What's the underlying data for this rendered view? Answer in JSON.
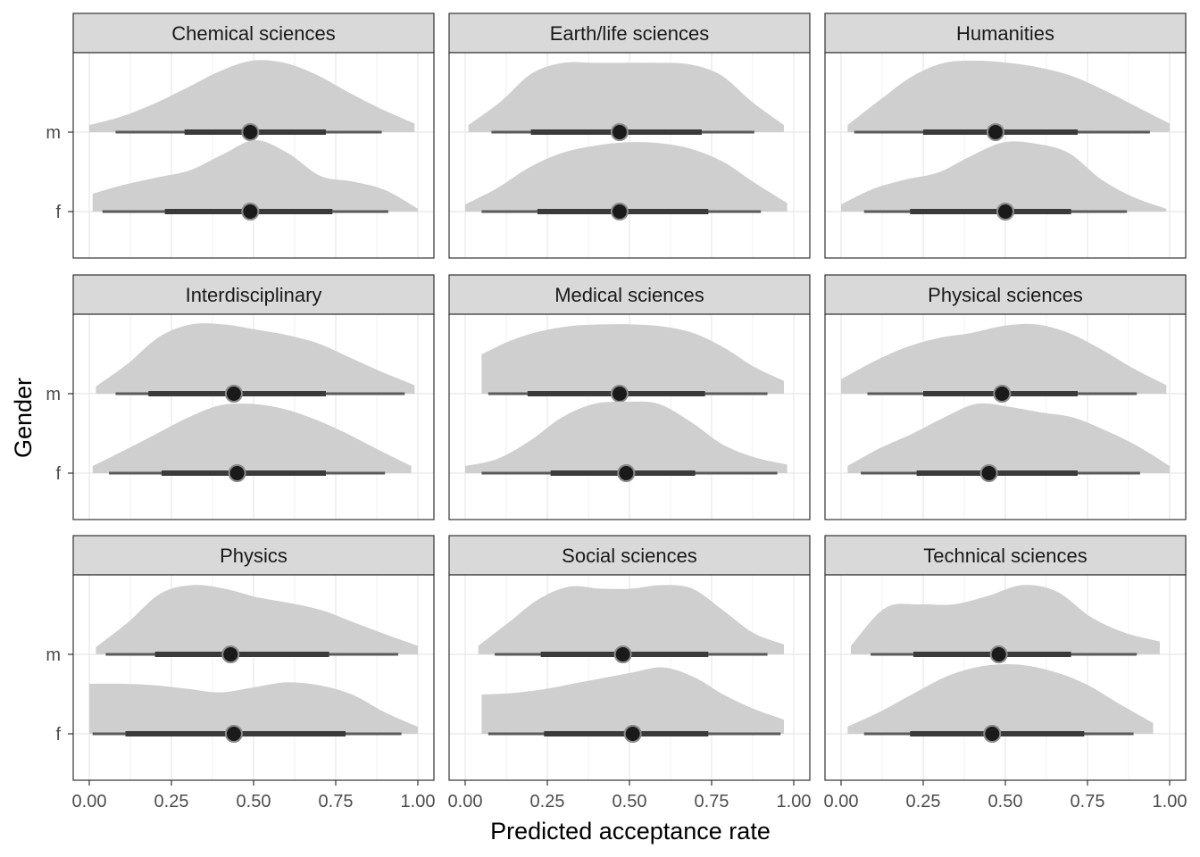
{
  "chart_data": {
    "type": "halfeye",
    "xlabel": "Predicted acceptance rate",
    "ylabel": "Gender",
    "xlim": [
      0,
      1
    ],
    "x_ticks": [
      "0.00",
      "0.25",
      "0.50",
      "0.75",
      "1.00"
    ],
    "y_categories": [
      "f",
      "m"
    ],
    "grid": true,
    "colors": {
      "density": "#cfcfcf",
      "interval": "#2b2b2b",
      "strip_bg": "#d9d9d9",
      "grid": "#ebebeb"
    },
    "panels": [
      {
        "title": "Chemical sciences",
        "series": [
          {
            "group": "m",
            "median": 0.49,
            "i66": [
              0.29,
              0.72
            ],
            "i95": [
              0.08,
              0.89
            ],
            "range": [
              0.0,
              0.99
            ],
            "density": [
              0.1,
              0.22,
              0.4,
              0.62,
              0.85,
              1.0,
              0.97,
              0.8,
              0.55,
              0.32,
              0.12
            ]
          },
          {
            "group": "f",
            "median": 0.49,
            "i66": [
              0.23,
              0.74
            ],
            "i95": [
              0.04,
              0.91
            ],
            "range": [
              0.01,
              1.0
            ],
            "density": [
              0.25,
              0.38,
              0.48,
              0.58,
              0.8,
              1.0,
              0.82,
              0.5,
              0.42,
              0.3,
              0.04
            ]
          }
        ]
      },
      {
        "title": "Earth/life sciences",
        "series": [
          {
            "group": "m",
            "median": 0.47,
            "i66": [
              0.2,
              0.72
            ],
            "i95": [
              0.08,
              0.88
            ],
            "range": [
              0.01,
              0.97
            ],
            "density": [
              0.1,
              0.42,
              0.82,
              0.97,
              0.97,
              0.97,
              0.97,
              0.95,
              0.8,
              0.42,
              0.1
            ]
          },
          {
            "group": "f",
            "median": 0.47,
            "i66": [
              0.22,
              0.74
            ],
            "i95": [
              0.05,
              0.9
            ],
            "range": [
              0.0,
              0.98
            ],
            "density": [
              0.1,
              0.33,
              0.62,
              0.82,
              0.92,
              0.97,
              0.96,
              0.88,
              0.7,
              0.4,
              0.12
            ]
          }
        ]
      },
      {
        "title": "Humanities",
        "series": [
          {
            "group": "m",
            "median": 0.47,
            "i66": [
              0.25,
              0.72
            ],
            "i95": [
              0.04,
              0.94
            ],
            "range": [
              0.02,
              1.0
            ],
            "density": [
              0.1,
              0.45,
              0.78,
              0.97,
              1.0,
              0.97,
              0.9,
              0.78,
              0.58,
              0.35,
              0.12
            ]
          },
          {
            "group": "f",
            "median": 0.5,
            "i66": [
              0.21,
              0.7
            ],
            "i95": [
              0.07,
              0.87
            ],
            "range": [
              0.0,
              0.99
            ],
            "density": [
              0.1,
              0.32,
              0.45,
              0.55,
              0.78,
              0.97,
              0.95,
              0.82,
              0.45,
              0.2,
              0.04
            ]
          }
        ]
      },
      {
        "title": "Interdisciplinary",
        "series": [
          {
            "group": "m",
            "median": 0.44,
            "i66": [
              0.18,
              0.72
            ],
            "i95": [
              0.08,
              0.96
            ],
            "range": [
              0.02,
              0.99
            ],
            "density": [
              0.1,
              0.42,
              0.8,
              0.97,
              0.97,
              0.9,
              0.82,
              0.7,
              0.5,
              0.3,
              0.12
            ]
          },
          {
            "group": "f",
            "median": 0.45,
            "i66": [
              0.22,
              0.72
            ],
            "i95": [
              0.06,
              0.9
            ],
            "range": [
              0.01,
              0.98
            ],
            "density": [
              0.1,
              0.32,
              0.55,
              0.78,
              0.95,
              0.97,
              0.9,
              0.75,
              0.55,
              0.32,
              0.1
            ]
          }
        ]
      },
      {
        "title": "Medical sciences",
        "series": [
          {
            "group": "m",
            "median": 0.47,
            "i66": [
              0.19,
              0.73
            ],
            "i95": [
              0.07,
              0.92
            ],
            "range": [
              0.05,
              0.97
            ],
            "density": [
              0.55,
              0.75,
              0.88,
              0.95,
              0.97,
              0.97,
              0.94,
              0.85,
              0.65,
              0.38,
              0.18
            ]
          },
          {
            "group": "f",
            "median": 0.49,
            "i66": [
              0.26,
              0.7
            ],
            "i95": [
              0.05,
              0.95
            ],
            "range": [
              0.0,
              0.98
            ],
            "density": [
              0.1,
              0.2,
              0.45,
              0.78,
              0.97,
              1.0,
              0.97,
              0.72,
              0.4,
              0.22,
              0.12
            ]
          }
        ]
      },
      {
        "title": "Physical sciences",
        "series": [
          {
            "group": "m",
            "median": 0.49,
            "i66": [
              0.25,
              0.72
            ],
            "i95": [
              0.08,
              0.9
            ],
            "range": [
              0.0,
              0.99
            ],
            "density": [
              0.2,
              0.45,
              0.65,
              0.78,
              0.85,
              0.95,
              0.97,
              0.85,
              0.62,
              0.35,
              0.12
            ]
          },
          {
            "group": "f",
            "median": 0.45,
            "i66": [
              0.23,
              0.72
            ],
            "i95": [
              0.06,
              0.91
            ],
            "range": [
              0.02,
              1.0
            ],
            "density": [
              0.1,
              0.35,
              0.55,
              0.78,
              0.97,
              0.93,
              0.85,
              0.78,
              0.6,
              0.38,
              0.1
            ]
          }
        ]
      },
      {
        "title": "Physics",
        "series": [
          {
            "group": "m",
            "median": 0.43,
            "i66": [
              0.2,
              0.73
            ],
            "i95": [
              0.05,
              0.94
            ],
            "range": [
              0.02,
              1.0
            ],
            "density": [
              0.1,
              0.45,
              0.85,
              0.97,
              0.92,
              0.8,
              0.72,
              0.62,
              0.45,
              0.28,
              0.12
            ]
          },
          {
            "group": "f",
            "median": 0.44,
            "i66": [
              0.11,
              0.78
            ],
            "i95": [
              0.01,
              0.95
            ],
            "range": [
              0.0,
              1.0
            ],
            "density": [
              0.7,
              0.7,
              0.68,
              0.63,
              0.58,
              0.65,
              0.72,
              0.68,
              0.55,
              0.3,
              0.1
            ]
          }
        ]
      },
      {
        "title": "Social sciences",
        "series": [
          {
            "group": "m",
            "median": 0.48,
            "i66": [
              0.23,
              0.74
            ],
            "i95": [
              0.09,
              0.92
            ],
            "range": [
              0.04,
              0.97
            ],
            "density": [
              0.12,
              0.45,
              0.78,
              0.95,
              0.92,
              0.92,
              0.97,
              0.92,
              0.62,
              0.3,
              0.14
            ]
          },
          {
            "group": "f",
            "median": 0.51,
            "i66": [
              0.24,
              0.74
            ],
            "i95": [
              0.07,
              0.96
            ],
            "range": [
              0.05,
              0.97
            ],
            "density": [
              0.55,
              0.57,
              0.62,
              0.7,
              0.78,
              0.86,
              0.93,
              0.8,
              0.55,
              0.35,
              0.2
            ]
          }
        ]
      },
      {
        "title": "Technical sciences",
        "series": [
          {
            "group": "m",
            "median": 0.48,
            "i66": [
              0.22,
              0.7
            ],
            "i95": [
              0.09,
              0.9
            ],
            "range": [
              0.03,
              0.97
            ],
            "density": [
              0.12,
              0.65,
              0.7,
              0.7,
              0.82,
              0.97,
              0.88,
              0.52,
              0.3,
              0.18
            ]
          },
          {
            "group": "f",
            "median": 0.46,
            "i66": [
              0.21,
              0.74
            ],
            "i95": [
              0.07,
              0.89
            ],
            "range": [
              0.02,
              0.95
            ],
            "density": [
              0.1,
              0.32,
              0.58,
              0.82,
              0.95,
              0.97,
              0.88,
              0.7,
              0.42,
              0.15
            ]
          }
        ]
      }
    ]
  }
}
